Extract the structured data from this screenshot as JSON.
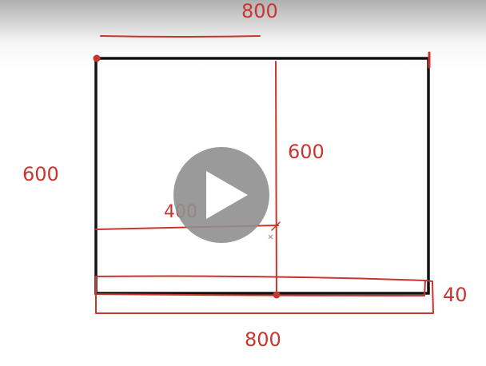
{
  "drawing": {
    "labels": {
      "top_width": "800",
      "left_height": "600",
      "center_height": "600",
      "half_width": "400",
      "strip_height": "40",
      "bottom_width": "800"
    },
    "colors": {
      "outline": "#111111",
      "annotation": "#c8362f",
      "play_button_bg": "#8f8f8f",
      "play_icon": "#ffffff"
    }
  },
  "player": {
    "play_button": {
      "icon": "play-icon"
    }
  }
}
